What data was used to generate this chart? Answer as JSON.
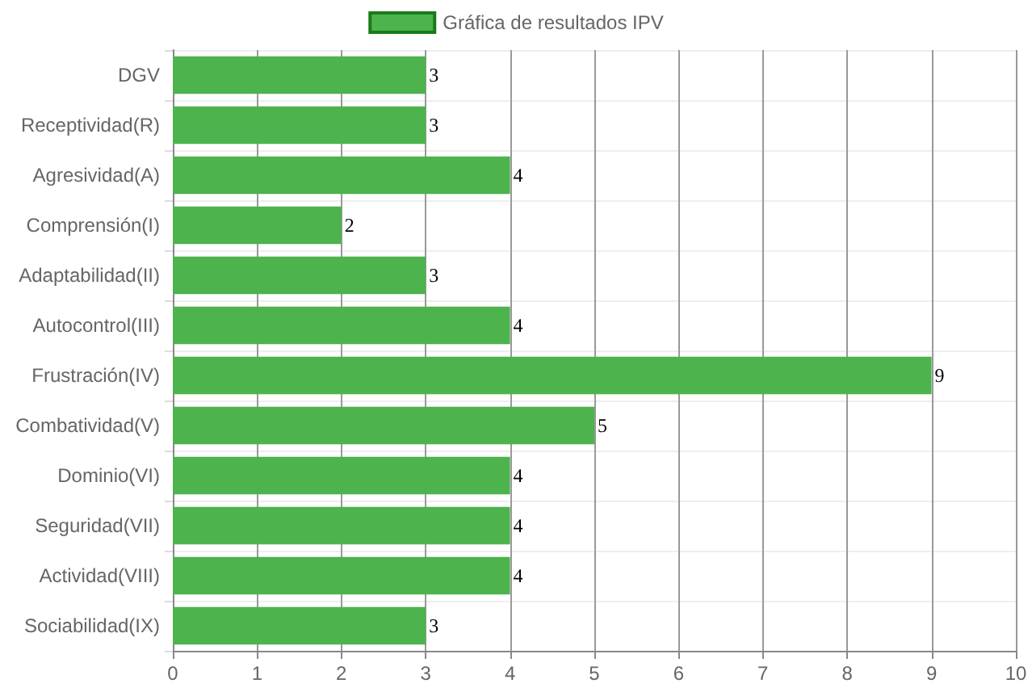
{
  "chart_data": {
    "type": "bar",
    "orientation": "horizontal",
    "categories": [
      "DGV",
      "Receptividad(R)",
      "Agresividad(A)",
      "Comprensión(I)",
      "Adaptabilidad(II)",
      "Autocontrol(III)",
      "Frustración(IV)",
      "Combatividad(V)",
      "Dominio(VI)",
      "Seguridad(VII)",
      "Actividad(VIII)",
      "Sociabilidad(IX)"
    ],
    "series": [
      {
        "name": "Gráfica de resultados IPV",
        "color": "#4db34d",
        "values": [
          3,
          3,
          4,
          2,
          3,
          4,
          9,
          5,
          4,
          4,
          4,
          3
        ]
      }
    ],
    "xlim": [
      0,
      10
    ],
    "xticks": [
      0,
      1,
      2,
      3,
      4,
      5,
      6,
      7,
      8,
      9,
      10
    ],
    "grid": true,
    "legend": "top",
    "data_labels": true
  }
}
